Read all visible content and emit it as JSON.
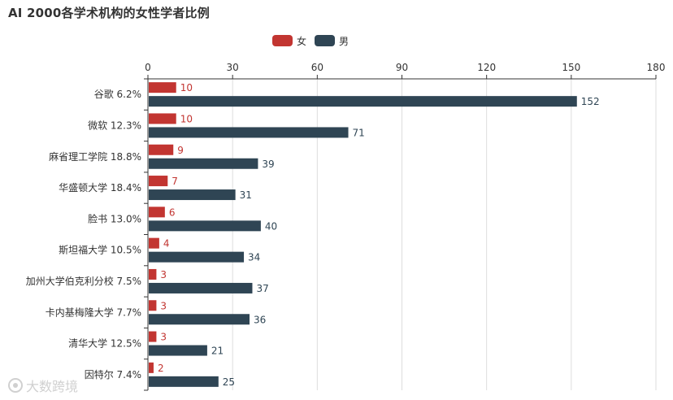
{
  "title": "AI 2000各学术机构的女性学者比例",
  "watermark": "大数跨境",
  "chart_data": {
    "type": "bar",
    "orientation": "horizontal",
    "title": "AI 2000各学术机构的女性学者比例",
    "categories": [
      "谷歌 6.2%",
      "微软 12.3%",
      "麻省理工学院 18.8%",
      "华盛顿大学 18.4%",
      "脸书 13.0%",
      "斯坦福大学 10.5%",
      "加州大学伯克利分校 7.5%",
      "卡内基梅隆大学 7.7%",
      "清华大学 12.5%",
      "因特尔 7.4%"
    ],
    "series": [
      {
        "name": "女",
        "color": "#c23531",
        "values": [
          10,
          10,
          9,
          7,
          6,
          4,
          3,
          3,
          3,
          2
        ]
      },
      {
        "name": "男",
        "color": "#2f4554",
        "values": [
          152,
          71,
          39,
          31,
          40,
          34,
          37,
          36,
          21,
          25
        ]
      }
    ],
    "xlim": [
      0,
      180
    ],
    "xticks": [
      0,
      30,
      60,
      90,
      120,
      150,
      180
    ],
    "xaxis_position": "top",
    "grid": true,
    "legend_position": "top-center",
    "data_labels": true
  }
}
